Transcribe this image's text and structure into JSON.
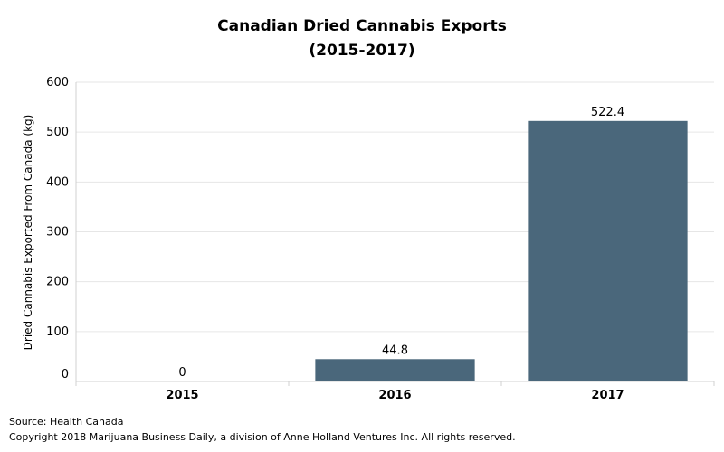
{
  "chart_data": {
    "type": "bar",
    "title": "Canadian Dried Cannabis Exports",
    "subtitle": "(2015-2017)",
    "ylabel": "Dried Cannabis Exported From Canada (kg)",
    "xlabel": "",
    "categories": [
      "2015",
      "2016",
      "2017"
    ],
    "values": [
      0,
      44.8,
      522.4
    ],
    "data_labels": [
      "0",
      "44.8",
      "522.4"
    ],
    "ylim": [
      0,
      600
    ],
    "yticks": [
      0,
      100,
      200,
      300,
      400,
      500,
      600
    ],
    "grid": true,
    "legend": "none",
    "bar_color": "#4a677b",
    "grid_color": "#e6e6e6"
  },
  "footer": {
    "source": "Source: Health Canada",
    "copyright": "Copyright 2018 Marijuana Business Daily, a division of Anne Holland Ventures Inc. All rights reserved."
  }
}
